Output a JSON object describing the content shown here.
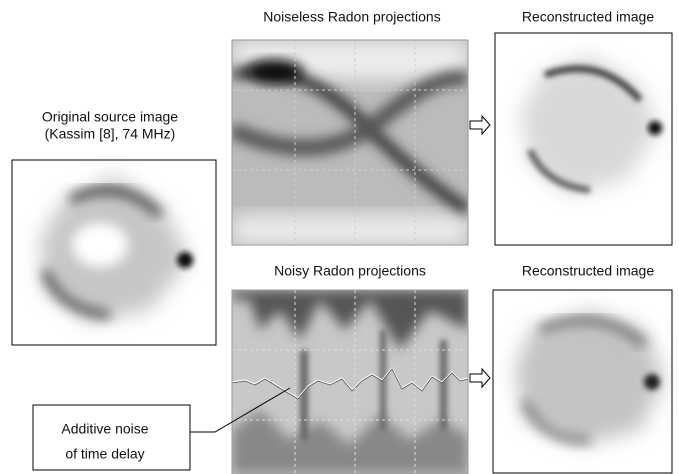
{
  "original": {
    "title_line1": "Original source image",
    "title_line2": "(Kassim [8], 74 MHz)"
  },
  "noiseless": {
    "title": "Noiseless Radon projections"
  },
  "reconstructed_top": {
    "title": "Reconstructed image"
  },
  "noisy": {
    "title": "Noisy Radon projections"
  },
  "reconstructed_bottom": {
    "title": "Reconstructed image"
  },
  "callout": {
    "line1": "Additive noise",
    "line2": "of time delay"
  }
}
